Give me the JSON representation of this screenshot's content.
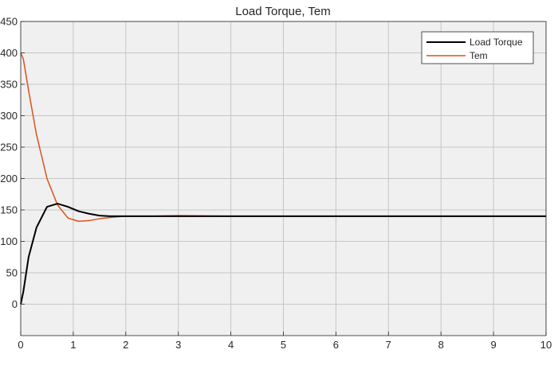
{
  "chart_data": {
    "type": "line",
    "title": "Load Torque, Tem",
    "xlabel": "",
    "ylabel": "",
    "xlim": [
      0,
      10
    ],
    "ylim": [
      -50,
      450
    ],
    "xticks": [
      0,
      1,
      2,
      3,
      4,
      5,
      6,
      7,
      8,
      9,
      10
    ],
    "yticks": [
      0,
      50,
      100,
      150,
      200,
      250,
      300,
      350,
      400,
      450
    ],
    "xtick_labels": [
      "0",
      "1",
      "2",
      "3",
      "4",
      "5",
      "6",
      "7",
      "8",
      "9",
      "10"
    ],
    "ytick_labels": [
      "0",
      "50",
      "100",
      "150",
      "200",
      "250",
      "300",
      "350",
      "400",
      "450"
    ],
    "grid": true,
    "legend_position": "top-right",
    "series": [
      {
        "name": "Load Torque",
        "color": "#000000",
        "x": [
          0,
          0.05,
          0.15,
          0.3,
          0.5,
          0.7,
          0.9,
          1.1,
          1.3,
          1.5,
          1.7,
          2.0,
          2.5,
          3.0,
          4.0,
          10.0
        ],
        "y": [
          0,
          20,
          75,
          122,
          155,
          160,
          155,
          148,
          144,
          141,
          140,
          140,
          140,
          140,
          140,
          140
        ]
      },
      {
        "name": "Tem",
        "color": "#D95319",
        "x": [
          0,
          0.05,
          0.15,
          0.3,
          0.5,
          0.7,
          0.9,
          1.1,
          1.3,
          1.5,
          1.7,
          2.0,
          2.5,
          3.0,
          4.0,
          10.0
        ],
        "y": [
          400,
          390,
          340,
          270,
          200,
          158,
          137,
          132,
          133,
          136,
          138,
          140,
          140,
          141,
          140,
          140
        ]
      }
    ]
  }
}
